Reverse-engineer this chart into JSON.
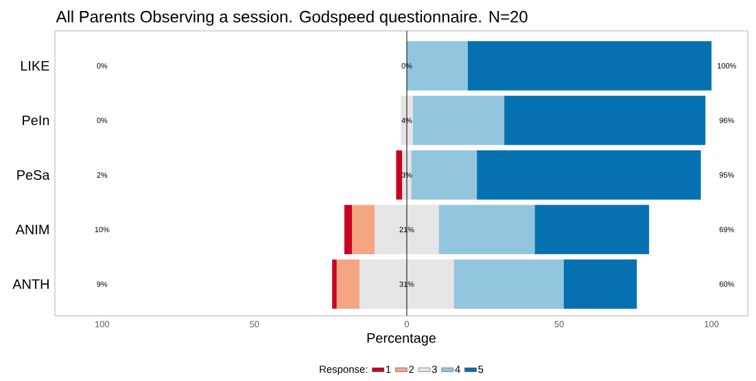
{
  "chart_data": {
    "type": "bar",
    "orientation": "horizontal",
    "title": "All Parents Observing a session. Godspeed questionnaire. N=20",
    "xlabel": "Percentage",
    "legend_title": "Response:",
    "legend": "bottom",
    "grid": false,
    "categories": [
      "LIKE",
      "PeIn",
      "PeSa",
      "ANIM",
      "ANTH"
    ],
    "xlim": [
      -115.5,
      111.9
    ],
    "xticks": [
      {
        "value": -100,
        "label": "100"
      },
      {
        "value": -50,
        "label": "50"
      },
      0,
      50,
      100
    ],
    "ref_lines": [
      {
        "axis": "x",
        "value": 0,
        "color": "#000000"
      }
    ],
    "series": [
      {
        "name": "1",
        "color": "#ca0020",
        "values": [
          null,
          null,
          2,
          2.5,
          1.5
        ],
        "base": [
          null,
          null,
          -3.5,
          -20.5,
          -24.5
        ]
      },
      {
        "name": "2",
        "color": "#f4a582",
        "values": [
          null,
          null,
          null,
          7.5,
          7.5
        ],
        "base": [
          null,
          null,
          null,
          -18,
          -23
        ]
      },
      {
        "name": "3",
        "color": "#e5e5e5",
        "values": [
          null,
          4,
          3,
          21,
          31
        ],
        "base": [
          null,
          -2,
          -1.5,
          -10.5,
          -15.5
        ]
      },
      {
        "name": "4",
        "color": "#92c5de",
        "values": [
          20,
          30,
          21.5,
          31.5,
          36
        ],
        "base": [
          0,
          2,
          1.5,
          10.5,
          15.5
        ]
      },
      {
        "name": "5",
        "color": "#0571b0",
        "values": [
          80,
          66,
          73.5,
          37.5,
          24
        ],
        "base": [
          20,
          32,
          23,
          42,
          51.5
        ]
      }
    ],
    "annotations": [
      "0%",
      "0%",
      "2%",
      "10%",
      "9%",
      "0%",
      "4%",
      "3%",
      "21%",
      "31%",
      "100%",
      "96%",
      "95%",
      "69%",
      "60%"
    ]
  }
}
